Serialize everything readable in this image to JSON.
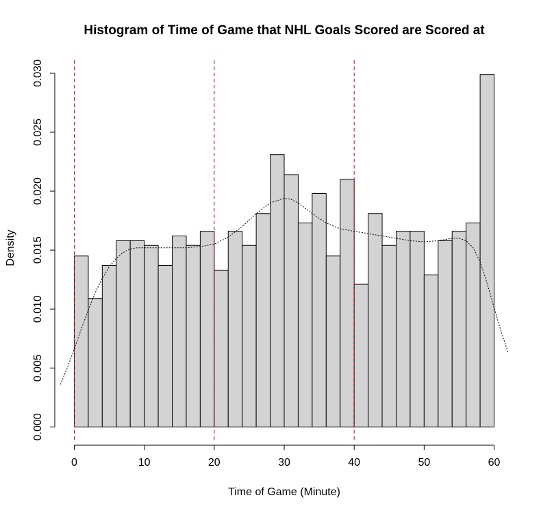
{
  "chart_data": {
    "type": "bar",
    "title": "Histogram of Time of Game that NHL Goals Scored are Scored at",
    "xlabel": "Time of Game (Minute)",
    "ylabel": "Density",
    "xlim": [
      -2.1,
      62.1
    ],
    "ylim": [
      -0.0012,
      0.0311
    ],
    "x_ticks": [
      0,
      10,
      20,
      30,
      40,
      50,
      60
    ],
    "y_ticks": [
      0.0,
      0.005,
      0.01,
      0.015,
      0.02,
      0.025,
      0.03
    ],
    "y_tick_labels": [
      "0.000",
      "0.005",
      "0.010",
      "0.015",
      "0.020",
      "0.025",
      "0.030"
    ],
    "bin_edges": [
      0,
      2,
      4,
      6,
      8,
      10,
      12,
      14,
      16,
      18,
      20,
      22,
      24,
      26,
      28,
      30,
      32,
      34,
      36,
      38,
      40,
      42,
      44,
      46,
      48,
      50,
      52,
      54,
      56,
      58,
      60
    ],
    "values": [
      0.0145,
      0.0109,
      0.0137,
      0.0158,
      0.0158,
      0.0154,
      0.0137,
      0.0162,
      0.0154,
      0.0166,
      0.0133,
      0.0166,
      0.0154,
      0.0181,
      0.0231,
      0.0214,
      0.0173,
      0.0198,
      0.0145,
      0.021,
      0.0121,
      0.0181,
      0.0154,
      0.0166,
      0.0166,
      0.0129,
      0.0158,
      0.0166,
      0.0173,
      0.0299
    ],
    "reference_lines_x": [
      0,
      20,
      40
    ],
    "reference_line_color": "#cc0000",
    "bar_color": "#d3d3d3",
    "density_curve": {
      "x": [
        -2,
        -1,
        0,
        1,
        2,
        3,
        4,
        5,
        6,
        7,
        8,
        9,
        10,
        12,
        14,
        16,
        18,
        20,
        22,
        24,
        26,
        28,
        30,
        31,
        32,
        34,
        36,
        38,
        40,
        42,
        44,
        46,
        48,
        50,
        52,
        54,
        55,
        56,
        57,
        58,
        59,
        60,
        61,
        62
      ],
      "y": [
        0.0036,
        0.005,
        0.0066,
        0.0083,
        0.0099,
        0.0114,
        0.0126,
        0.0136,
        0.0143,
        0.0148,
        0.0151,
        0.0152,
        0.0152,
        0.0152,
        0.0152,
        0.0152,
        0.0153,
        0.0155,
        0.0161,
        0.017,
        0.0181,
        0.019,
        0.0194,
        0.0193,
        0.019,
        0.0181,
        0.0173,
        0.0168,
        0.0166,
        0.0164,
        0.0162,
        0.016,
        0.0158,
        0.0157,
        0.0158,
        0.016,
        0.016,
        0.0158,
        0.0152,
        0.014,
        0.0122,
        0.0101,
        0.0081,
        0.0063
      ]
    }
  }
}
